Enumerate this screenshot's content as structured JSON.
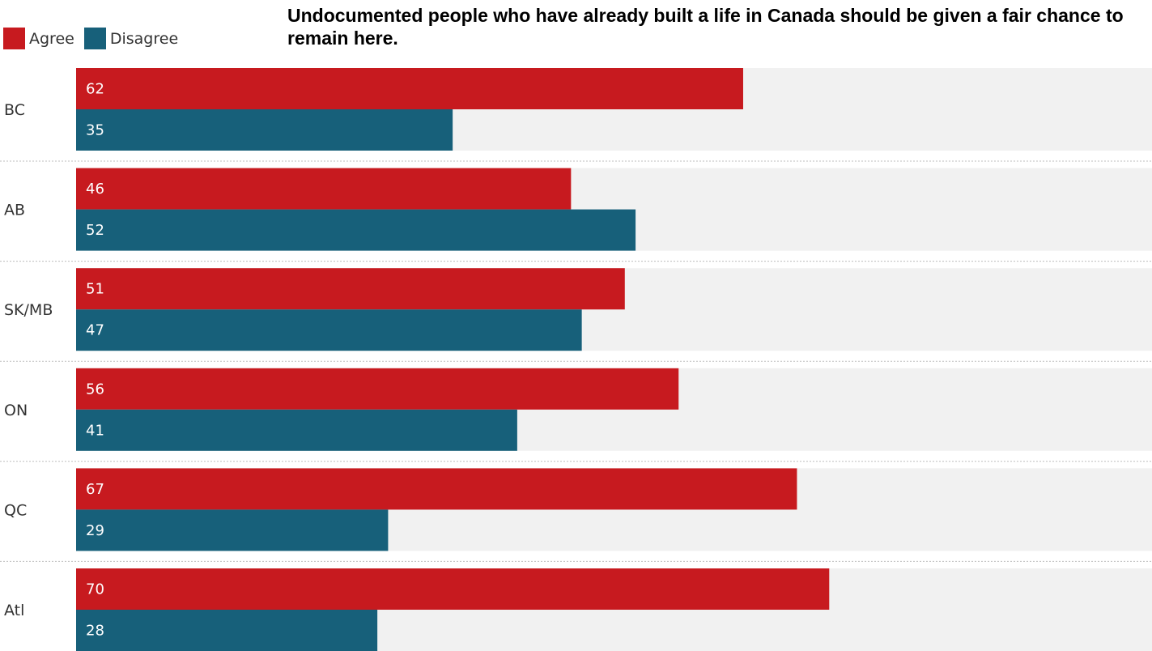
{
  "chart_data": {
    "type": "bar",
    "orientation": "horizontal",
    "title": "Undocumented people who have already built a life in Canada should be given a fair chance to remain here.",
    "categories": [
      "BC",
      "AB",
      "SK/MB",
      "ON",
      "QC",
      "Atl"
    ],
    "series": [
      {
        "name": "Agree",
        "color": "#c71a1f",
        "values": [
          62,
          46,
          51,
          56,
          67,
          70
        ]
      },
      {
        "name": "Disagree",
        "color": "#17607a",
        "values": [
          35,
          52,
          47,
          41,
          29,
          28
        ]
      }
    ],
    "xlim": [
      0,
      100
    ],
    "background_track_color": "#f1f1f1",
    "separator": "dotted",
    "legend_position": "top-left"
  }
}
